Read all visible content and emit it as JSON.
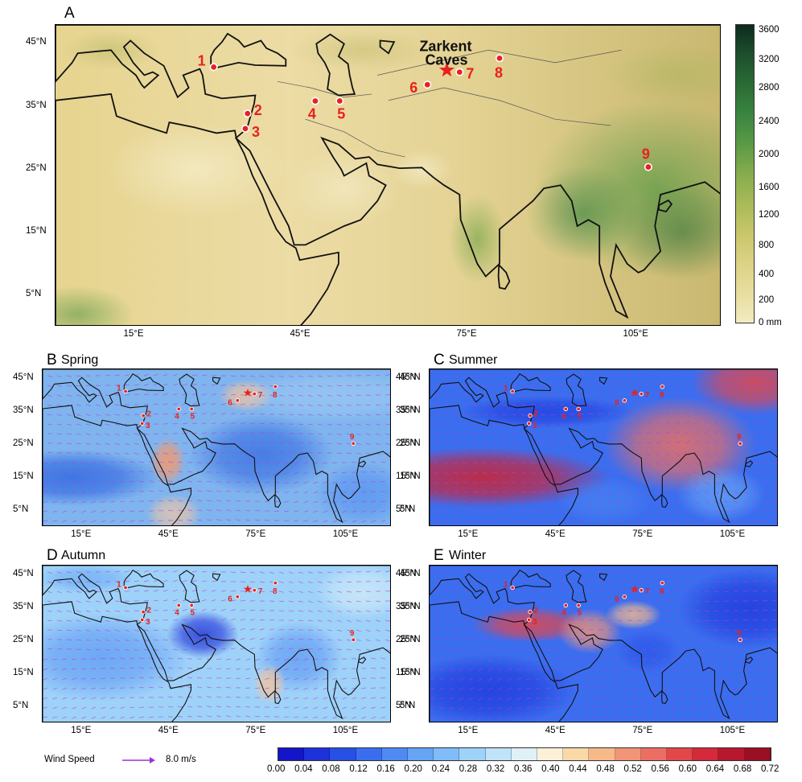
{
  "panels": {
    "A": {
      "letter": "A",
      "season": ""
    },
    "B": {
      "letter": "B",
      "season": "Spring"
    },
    "C": {
      "letter": "C",
      "season": "Summer"
    },
    "D": {
      "letter": "D",
      "season": "Autumn"
    },
    "E": {
      "letter": "E",
      "season": "Winter"
    }
  },
  "map_extent": {
    "lon": [
      0,
      120
    ],
    "lat": [
      0,
      48
    ]
  },
  "lon_ticks": [
    {
      "value": 15,
      "label": "15°E"
    },
    {
      "value": 45,
      "label": "45°E"
    },
    {
      "value": 75,
      "label": "75°E"
    },
    {
      "value": 105,
      "label": "105°E"
    }
  ],
  "lat_ticks": [
    {
      "value": 45,
      "label": "45°N"
    },
    {
      "value": 35,
      "label": "35°N"
    },
    {
      "value": 25,
      "label": "25°N"
    },
    {
      "value": 15,
      "label": "15°N"
    },
    {
      "value": 5,
      "label": "5°N"
    }
  ],
  "cave": {
    "label_line1": "Zarkent",
    "label_line2": "Caves",
    "lon": 70.5,
    "lat": 40.8
  },
  "sites": [
    {
      "id": "1",
      "lon": 28.5,
      "lat": 41.3
    },
    {
      "id": "2",
      "lon": 34.6,
      "lat": 33.9
    },
    {
      "id": "3",
      "lon": 34.2,
      "lat": 31.5
    },
    {
      "id": "4",
      "lon": 46.8,
      "lat": 35.9
    },
    {
      "id": "5",
      "lon": 51.2,
      "lat": 35.9
    },
    {
      "id": "6",
      "lon": 67.0,
      "lat": 38.5
    },
    {
      "id": "7",
      "lon": 72.8,
      "lat": 40.5
    },
    {
      "id": "8",
      "lon": 80.0,
      "lat": 42.7
    },
    {
      "id": "9",
      "lon": 106.8,
      "lat": 25.4
    }
  ],
  "elevation_colorbar": {
    "labels": [
      "3600",
      "3200",
      "2800",
      "2400",
      "2000",
      "1600",
      "1200",
      "800",
      "400",
      "200",
      "0 mm"
    ],
    "colors": [
      "#0e2a1e",
      "#1d4f2c",
      "#2a6b35",
      "#3a8541",
      "#5a9a45",
      "#86ac4c",
      "#a9ba58",
      "#c8c66a",
      "#dcd284",
      "#e8dd9f",
      "#f3ebc0"
    ]
  },
  "ratio_colorbar": {
    "labels": [
      "0.00",
      "0.04",
      "0.08",
      "0.12",
      "0.16",
      "0.20",
      "0.24",
      "0.28",
      "0.32",
      "0.36",
      "0.40",
      "0.44",
      "0.48",
      "0.52",
      "0.56",
      "0.60",
      "0.64",
      "0.68",
      "0.72"
    ],
    "colors": [
      "#1414c8",
      "#1e32d9",
      "#2850e6",
      "#3a6eef",
      "#4e8af2",
      "#66a4f5",
      "#80bcf7",
      "#9ed2f8",
      "#bfe3f8",
      "#dff1f7",
      "#fbf0d8",
      "#f9d9a8",
      "#f6b98a",
      "#f29478",
      "#ec6e62",
      "#e2474a",
      "#d42a3a",
      "#b8182e",
      "#9a0f24"
    ]
  },
  "wind_legend": {
    "label": "Wind Speed",
    "value": "8.0 m/s",
    "color": "#9b30d9"
  }
}
